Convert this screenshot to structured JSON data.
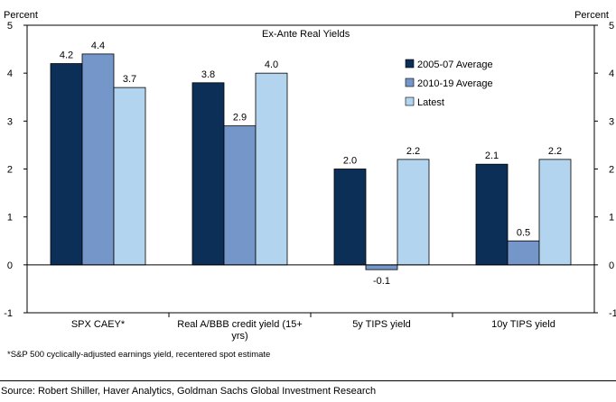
{
  "chart_data": {
    "type": "bar",
    "title": "Ex-Ante Real Yields",
    "ylabel_left": "Percent",
    "ylabel_right": "Percent",
    "ylim": [
      -1,
      5
    ],
    "yticks": [
      -1,
      0,
      1,
      2,
      3,
      4,
      5
    ],
    "categories": [
      "SPX CAEY*",
      "Real A/BBB credit yield (15+ yrs)",
      "5y TIPS yield",
      "10y TIPS yield"
    ],
    "series": [
      {
        "name": "2005-07 Average",
        "color": "#0b2f57",
        "values": [
          4.2,
          3.8,
          2.0,
          2.1
        ],
        "labels": [
          "4.2",
          "3.8",
          "2.0",
          "2.1"
        ]
      },
      {
        "name": "2010-19 Average",
        "color": "#7496c9",
        "values": [
          4.4,
          2.9,
          -0.1,
          0.5
        ],
        "labels": [
          "4.4",
          "2.9",
          "-0.1",
          "0.5"
        ]
      },
      {
        "name": "Latest",
        "color": "#b2d4ee",
        "values": [
          3.7,
          4.0,
          2.2,
          2.2
        ],
        "labels": [
          "3.7",
          "4.0",
          "2.2",
          "2.2"
        ]
      }
    ],
    "legend_position": "top-right",
    "grid": false
  },
  "footnote": "*S&P 500 cyclically-adjusted earnings yield, recentered spot estimate",
  "source": "Source: Robert Shiller, Haver Analytics, Goldman Sachs Global Investment Research"
}
